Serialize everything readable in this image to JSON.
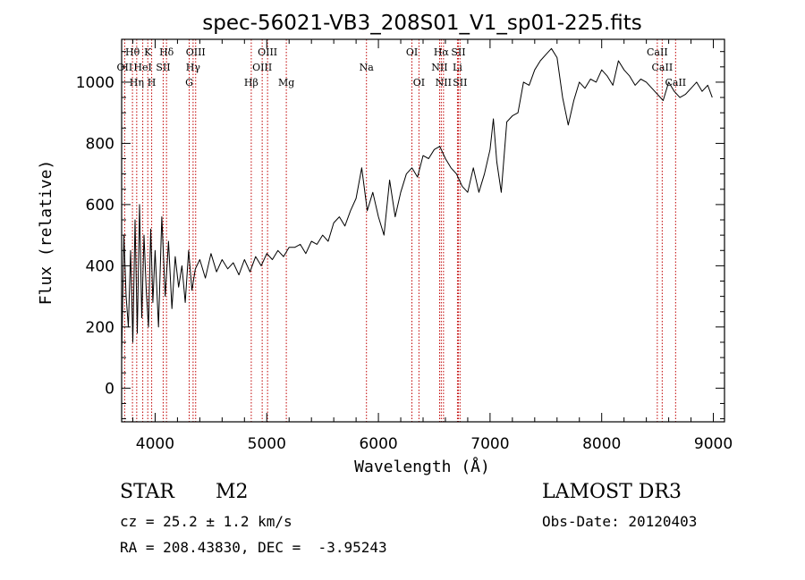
{
  "chart_data": {
    "type": "line",
    "title": "spec-56021-VB3_208S01_V1_sp01-225.fits",
    "xlabel": "Wavelength (Å)",
    "ylabel": "Flux (relative)",
    "xlim": [
      3700,
      9100
    ],
    "ylim": [
      -110,
      1140
    ],
    "xticks": [
      4000,
      5000,
      6000,
      7000,
      8000,
      9000
    ],
    "yticks": [
      0,
      200,
      400,
      600,
      800,
      1000
    ],
    "grid": false,
    "series": [
      {
        "name": "flux",
        "x": [
          3700,
          3720,
          3740,
          3760,
          3780,
          3800,
          3820,
          3840,
          3860,
          3880,
          3900,
          3920,
          3940,
          3960,
          3980,
          4000,
          4030,
          4060,
          4090,
          4120,
          4150,
          4180,
          4210,
          4240,
          4270,
          4300,
          4330,
          4360,
          4400,
          4450,
          4500,
          4550,
          4600,
          4650,
          4700,
          4750,
          4800,
          4850,
          4900,
          4950,
          5000,
          5050,
          5100,
          5150,
          5200,
          5250,
          5300,
          5350,
          5400,
          5450,
          5500,
          5550,
          5600,
          5650,
          5700,
          5750,
          5800,
          5850,
          5900,
          5950,
          6000,
          6050,
          6100,
          6150,
          6200,
          6250,
          6300,
          6350,
          6400,
          6450,
          6500,
          6550,
          6600,
          6650,
          6700,
          6750,
          6800,
          6850,
          6900,
          6950,
          7000,
          7030,
          7060,
          7100,
          7150,
          7200,
          7250,
          7300,
          7350,
          7400,
          7450,
          7500,
          7550,
          7600,
          7650,
          7700,
          7750,
          7800,
          7850,
          7900,
          7950,
          8000,
          8050,
          8100,
          8150,
          8200,
          8250,
          8300,
          8350,
          8400,
          8450,
          8500,
          8550,
          8600,
          8650,
          8700,
          8750,
          8800,
          8850,
          8900,
          8950,
          8990
        ],
        "values": [
          100,
          500,
          300,
          200,
          450,
          150,
          550,
          180,
          600,
          230,
          500,
          320,
          200,
          520,
          280,
          450,
          200,
          560,
          300,
          480,
          260,
          430,
          330,
          400,
          280,
          450,
          320,
          390,
          420,
          360,
          440,
          380,
          420,
          390,
          410,
          370,
          420,
          380,
          430,
          400,
          440,
          420,
          450,
          430,
          460,
          460,
          470,
          440,
          480,
          470,
          500,
          480,
          540,
          560,
          530,
          580,
          620,
          720,
          580,
          640,
          560,
          500,
          680,
          560,
          640,
          700,
          720,
          690,
          760,
          750,
          780,
          790,
          750,
          720,
          700,
          660,
          640,
          720,
          640,
          700,
          780,
          880,
          740,
          640,
          870,
          890,
          900,
          1000,
          990,
          1040,
          1070,
          1090,
          1110,
          1080,
          950,
          860,
          940,
          1000,
          980,
          1010,
          1000,
          1040,
          1020,
          990,
          1070,
          1040,
          1020,
          990,
          1010,
          1000,
          980,
          960,
          940,
          1000,
          970,
          950,
          960,
          980,
          1000,
          970,
          990,
          950
        ]
      }
    ],
    "lines": [
      {
        "label": "Hθ",
        "x": 3797,
        "row": 0
      },
      {
        "label": "OII",
        "x": 3727,
        "row": 1
      },
      {
        "label": "Hη",
        "x": 3835,
        "row": 2
      },
      {
        "label": "K",
        "x": 3934,
        "row": 0
      },
      {
        "label": "H",
        "x": 3969,
        "row": 2
      },
      {
        "label": "HeI",
        "x": 3889,
        "row": 1
      },
      {
        "label": "SII",
        "x": 4072,
        "row": 1
      },
      {
        "label": "Hδ",
        "x": 4102,
        "row": 0
      },
      {
        "label": "OIII",
        "x": 4363,
        "row": 0
      },
      {
        "label": "Hγ",
        "x": 4340,
        "row": 1
      },
      {
        "label": "G",
        "x": 4305,
        "row": 2
      },
      {
        "label": "Hβ",
        "x": 4861,
        "row": 2
      },
      {
        "label": "OIII",
        "x": 5007,
        "row": 0
      },
      {
        "label": "OIII",
        "x": 4959,
        "row": 1
      },
      {
        "label": "Mg",
        "x": 5175,
        "row": 2
      },
      {
        "label": "Na",
        "x": 5893,
        "row": 1
      },
      {
        "label": "OI",
        "x": 6300,
        "row": 0
      },
      {
        "label": "OI",
        "x": 6363,
        "row": 2
      },
      {
        "label": "Hα",
        "x": 6563,
        "row": 0
      },
      {
        "label": "NII",
        "x": 6548,
        "row": 1
      },
      {
        "label": "NII",
        "x": 6583,
        "row": 2
      },
      {
        "label": "SII",
        "x": 6716,
        "row": 0
      },
      {
        "label": "Li",
        "x": 6708,
        "row": 1
      },
      {
        "label": "SII",
        "x": 6731,
        "row": 2
      },
      {
        "label": "CaII",
        "x": 8498,
        "row": 0
      },
      {
        "label": "CaII",
        "x": 8542,
        "row": 1
      },
      {
        "label": "CaII",
        "x": 8662,
        "row": 2
      }
    ]
  },
  "footer": {
    "class_label": "STAR",
    "subclass": "M2",
    "cz": "cz = 25.2 ± 1.2 km/s",
    "coords": "RA = 208.43830, DEC =  -3.95243",
    "survey": "LAMOST DR3",
    "obs_date": "Obs-Date: 20120403"
  },
  "colors": {
    "line_marker": "#c00000",
    "spectrum": "#000000"
  }
}
